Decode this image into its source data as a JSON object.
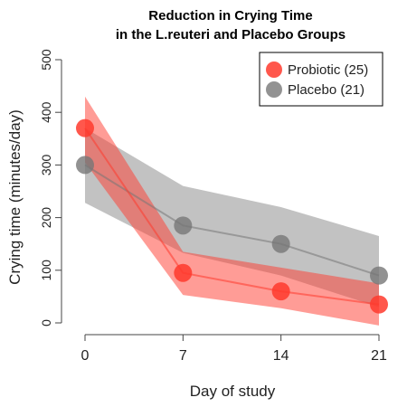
{
  "chart_data": {
    "type": "line",
    "title_lines": [
      "Reduction in Crying Time",
      "in the L.reuteri and Placebo Groups"
    ],
    "xlabel": "Day of study",
    "ylabel": "Crying time (minutes/day)",
    "x": [
      0,
      7,
      14,
      21
    ],
    "x_ticks": [
      0,
      7,
      14,
      21
    ],
    "y_ticks": [
      0,
      100,
      200,
      300,
      400,
      500
    ],
    "ylim": [
      0,
      500
    ],
    "xlim": [
      0,
      21
    ],
    "legend_position": "top-right",
    "grid": false,
    "series": [
      {
        "name": "Placebo (21)",
        "color": "#777777",
        "values": [
          300,
          185,
          150,
          90
        ],
        "band_upper": [
          370,
          260,
          220,
          165
        ],
        "band_lower": [
          228,
          133,
          90,
          30
        ]
      },
      {
        "name": "Probiotic (25)",
        "color": "#ff3a2d",
        "values": [
          370,
          95,
          60,
          35
        ],
        "band_upper": [
          430,
          135,
          105,
          75
        ],
        "band_lower": [
          305,
          53,
          28,
          -5
        ]
      }
    ]
  }
}
